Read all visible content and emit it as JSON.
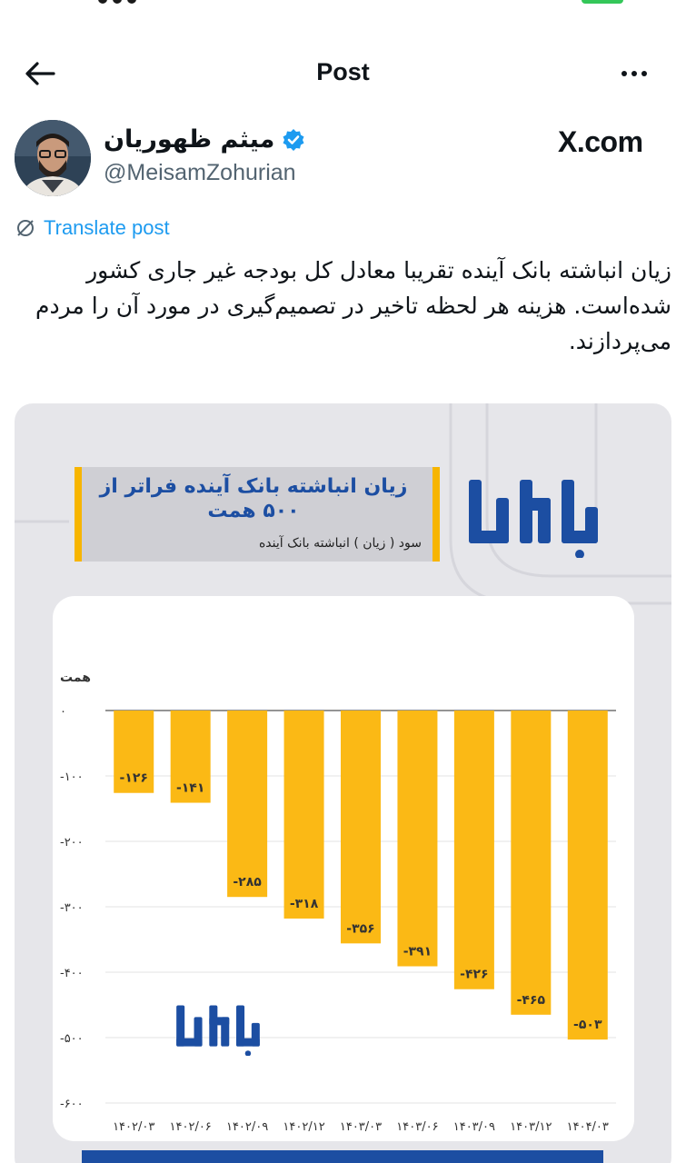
{
  "header": {
    "title": "Post"
  },
  "author": {
    "name": "میثم ظهوریان",
    "handle": "@MeisamZohurian",
    "verified": true,
    "source_label": "X.com"
  },
  "translate": {
    "label": "Translate post"
  },
  "post": {
    "text": "زیان انباشته بانک آینده تقریبا معادل کل بودجه غیر جاری کشور شده‌است. هزینه هر لحظه تاخیر در تصمیم‌گیری در مورد آن را مردم می‌پردازند."
  },
  "media": {
    "headline": "زیان انباشته بانک آینده فراتر از ۵۰۰ همت",
    "subhead": "سود ( زیان ) انباشته بانک آینده",
    "brand": "بامداد"
  },
  "colors": {
    "bar": "#fbb915",
    "brand_blue": "#1c4ea2",
    "link": "#1d9bf0",
    "accent": "#f7b500"
  },
  "chart_data": {
    "type": "bar",
    "title": "زیان انباشته بانک آینده فراتر از ۵۰۰ همت",
    "subtitle": "سود ( زیان ) انباشته بانک آینده",
    "ylabel": "همت",
    "xlabel": "",
    "categories": [
      "۱۴۰۲/۰۳",
      "۱۴۰۲/۰۶",
      "۱۴۰۲/۰۹",
      "۱۴۰۲/۱۲",
      "۱۴۰۳/۰۳",
      "۱۴۰۳/۰۶",
      "۱۴۰۳/۰۹",
      "۱۴۰۳/۱۲",
      "۱۴۰۴/۰۳"
    ],
    "values": [
      -126,
      -141,
      -285,
      -318,
      -356,
      -391,
      -426,
      -465,
      -503
    ],
    "value_labels": [
      "-۱۲۶",
      "-۱۴۱",
      "-۲۸۵",
      "-۳۱۸",
      "-۳۵۶",
      "-۳۹۱",
      "-۴۲۶",
      "-۴۶۵",
      "-۵۰۳"
    ],
    "yticks": [
      0,
      -100,
      -200,
      -300,
      -400,
      -500,
      -600
    ],
    "ytick_labels": [
      "۰",
      "-۱۰۰",
      "-۲۰۰",
      "-۳۰۰",
      "-۴۰۰",
      "-۵۰۰",
      "-۶۰۰"
    ],
    "ylim": [
      -600,
      0
    ],
    "grid": true,
    "legend": "none"
  }
}
